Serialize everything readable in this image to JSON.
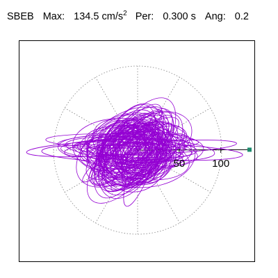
{
  "header": {
    "station": "SBEB",
    "max_label": "Max:",
    "max_value": "134.5 cm/s",
    "max_exp": "2",
    "per_label": "Per:",
    "per_value": "0.300 s",
    "ang_label": "Ang:",
    "ang_value": "0.2"
  },
  "chart_data": {
    "type": "polar-orbit",
    "title": "SBEB  Max: 134.5 cm/s2  Per: 0.300 s  Ang: 0.2",
    "max_acceleration": 134.5,
    "units": "cm/s2",
    "period": 0.3,
    "angle": 0.2,
    "radial_ticks": [
      50,
      100
    ],
    "radial_tick_labels": [
      "50",
      "100"
    ],
    "rmax": 134.5,
    "angular_gridlines_deg": [
      0,
      30,
      60,
      90,
      120,
      150,
      180,
      210,
      240,
      270,
      300,
      330
    ],
    "grid": true,
    "series": [
      {
        "color": "#9400d3"
      }
    ],
    "marker": {
      "angle_deg": 0.2,
      "radius": 134.5,
      "color": "#1e8c6e"
    }
  }
}
